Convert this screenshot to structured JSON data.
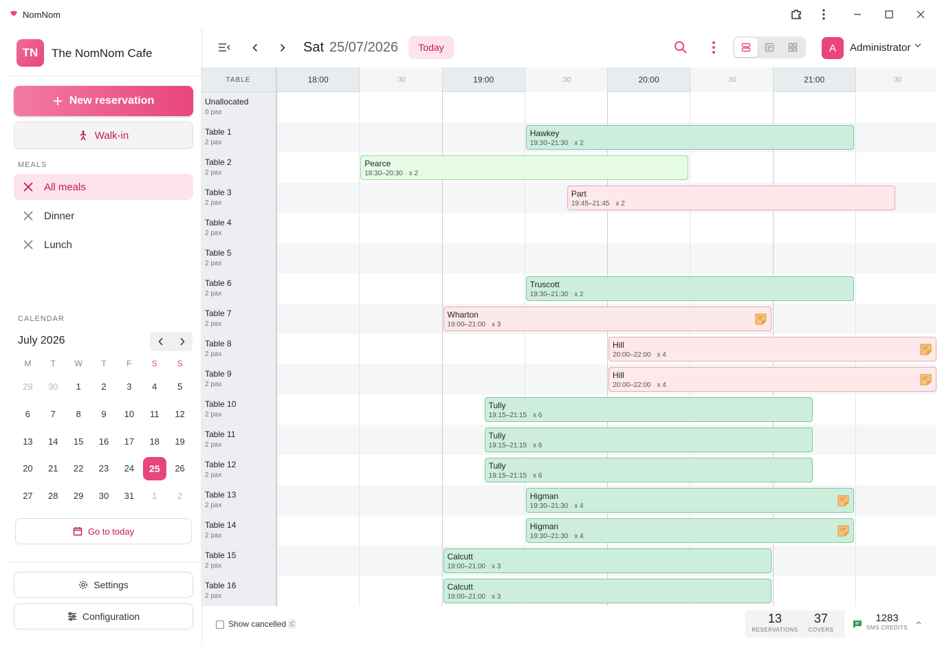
{
  "app": {
    "name": "NomNom"
  },
  "sidebar": {
    "cafe_initials": "TN",
    "cafe_name": "The NomNom Cafe",
    "new_reservation": "New reservation",
    "walk_in": "Walk-in",
    "meals_label": "MEALS",
    "meals": [
      {
        "label": "All meals",
        "active": true
      },
      {
        "label": "Dinner",
        "active": false
      },
      {
        "label": "Lunch",
        "active": false
      }
    ],
    "calendar_label": "CALENDAR",
    "month": "July 2026",
    "weekdays": [
      "M",
      "T",
      "W",
      "T",
      "F",
      "S",
      "S"
    ],
    "weeks": [
      [
        "29",
        "30",
        "1",
        "2",
        "3",
        "4",
        "5"
      ],
      [
        "6",
        "7",
        "8",
        "9",
        "10",
        "11",
        "12"
      ],
      [
        "13",
        "14",
        "15",
        "16",
        "17",
        "18",
        "19"
      ],
      [
        "20",
        "21",
        "22",
        "23",
        "24",
        "25",
        "26"
      ],
      [
        "27",
        "28",
        "29",
        "30",
        "31",
        "1",
        "2"
      ]
    ],
    "selected_day": "25",
    "go_to_today": "Go to today",
    "settings": "Settings",
    "configuration": "Configuration"
  },
  "topbar": {
    "day": "Sat",
    "date": "25/07/2026",
    "today": "Today",
    "user_initial": "A",
    "user_name": "Administrator"
  },
  "grid": {
    "table_header": "TABLE",
    "times": [
      "18:00",
      ":30",
      "19:00",
      ":30",
      "20:00",
      ":30",
      "21:00",
      ":30"
    ],
    "rows": [
      {
        "name": "Unallocated",
        "pax": "0 pax"
      },
      {
        "name": "Table 1",
        "pax": "2 pax"
      },
      {
        "name": "Table 2",
        "pax": "2 pax"
      },
      {
        "name": "Table 3",
        "pax": "2 pax"
      },
      {
        "name": "Table 4",
        "pax": "2 pax"
      },
      {
        "name": "Table 5",
        "pax": "2 pax"
      },
      {
        "name": "Table 6",
        "pax": "2 pax"
      },
      {
        "name": "Table 7",
        "pax": "2 pax"
      },
      {
        "name": "Table 8",
        "pax": "2 pax"
      },
      {
        "name": "Table 9",
        "pax": "2 pax"
      },
      {
        "name": "Table 10",
        "pax": "2 pax"
      },
      {
        "name": "Table 11",
        "pax": "2 pax"
      },
      {
        "name": "Table 12",
        "pax": "2 pax"
      },
      {
        "name": "Table 13",
        "pax": "2 pax"
      },
      {
        "name": "Table 14",
        "pax": "2 pax"
      },
      {
        "name": "Table 15",
        "pax": "2 pax"
      },
      {
        "name": "Table 16",
        "pax": "2 pax"
      }
    ],
    "bookings": [
      {
        "row": 1,
        "name": "Hawkey",
        "time": "19:30–21:30",
        "guests": "x 2",
        "start": "19:30",
        "end": "21:30",
        "color": "#cdeedd",
        "note": false
      },
      {
        "row": 2,
        "name": "Pearce",
        "time": "18:30–20:30",
        "guests": "x 2",
        "start": "18:30",
        "end": "20:30",
        "color": "#e6fbe6",
        "note": false
      },
      {
        "row": 3,
        "name": "Part",
        "time": "19:45–21:45",
        "guests": "x 2",
        "start": "19:45",
        "end": "21:45",
        "color": "#fde9ea",
        "note": false
      },
      {
        "row": 6,
        "name": "Truscott",
        "time": "19:30–21:30",
        "guests": "x 2",
        "start": "19:30",
        "end": "21:30",
        "color": "#cdeedd",
        "note": false
      },
      {
        "row": 7,
        "name": "Wharton",
        "time": "19:00–21:00",
        "guests": "x 3",
        "start": "19:00",
        "end": "21:00",
        "color": "#fde9ea",
        "note": true
      },
      {
        "row": 8,
        "name": "Hill",
        "time": "20:00–22:00",
        "guests": "x 4",
        "start": "20:00",
        "end": "22:00",
        "color": "#fde9ea",
        "note": true
      },
      {
        "row": 9,
        "name": "Hill",
        "time": "20:00–22:00",
        "guests": "x 4",
        "start": "20:00",
        "end": "22:00",
        "color": "#fde9ea",
        "note": true
      },
      {
        "row": 10,
        "name": "Tully",
        "time": "19:15–21:15",
        "guests": "x 6",
        "start": "19:15",
        "end": "21:15",
        "color": "#cdeedd",
        "note": false
      },
      {
        "row": 11,
        "name": "Tully",
        "time": "19:15–21:15",
        "guests": "x 6",
        "start": "19:15",
        "end": "21:15",
        "color": "#cdeedd",
        "note": false
      },
      {
        "row": 12,
        "name": "Tully",
        "time": "19:15–21:15",
        "guests": "x 6",
        "start": "19:15",
        "end": "21:15",
        "color": "#cdeedd",
        "note": false
      },
      {
        "row": 13,
        "name": "Higman",
        "time": "19:30–21:30",
        "guests": "x 4",
        "start": "19:30",
        "end": "21:30",
        "color": "#cdeedd",
        "note": true
      },
      {
        "row": 14,
        "name": "Higman",
        "time": "19:30–21:30",
        "guests": "x 4",
        "start": "19:30",
        "end": "21:30",
        "color": "#cdeedd",
        "note": true
      },
      {
        "row": 15,
        "name": "Calcutt",
        "time": "19:00–21:00",
        "guests": "x 3",
        "start": "19:00",
        "end": "21:00",
        "color": "#cdeedd",
        "note": false
      },
      {
        "row": 16,
        "name": "Calcutt",
        "time": "19:00–21:00",
        "guests": "x 3",
        "start": "19:00",
        "end": "21:00",
        "color": "#cdeedd",
        "note": false
      }
    ]
  },
  "footer": {
    "show_cancelled": "Show cancelled",
    "shortcut": "C",
    "reservations_value": "13",
    "reservations_label": "RESERVATIONS",
    "covers_value": "37",
    "covers_label": "COVERS",
    "sms_value": "1283",
    "sms_label": "SMS CREDITS"
  },
  "colors": {
    "accent": "#e8457e",
    "accent_dark": "#c2185b"
  }
}
